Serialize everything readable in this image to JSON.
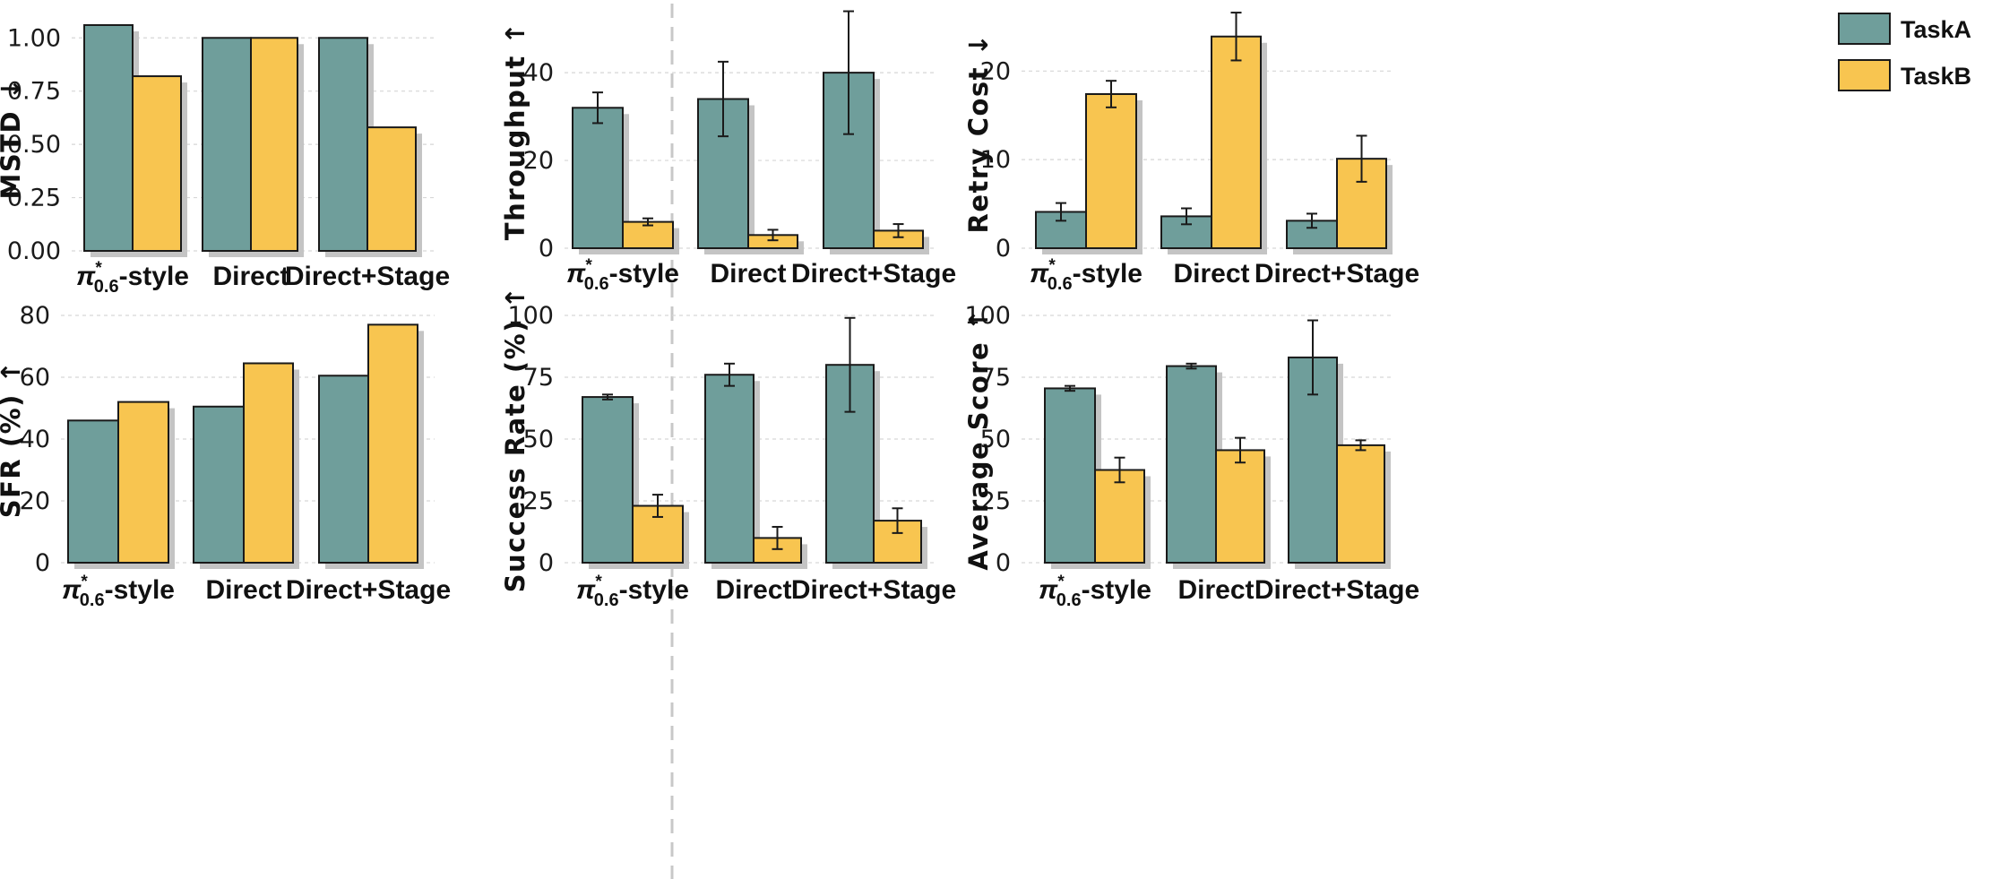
{
  "legend": [
    {
      "name": "TaskA",
      "color": "#6f9e9b"
    },
    {
      "name": "TaskB",
      "color": "#f8c550"
    }
  ],
  "colors": {
    "divider": "#c8c8c8",
    "grid": "#d6d6d6",
    "shadow": "#c4c4c4",
    "edge": "#1a1a1a"
  },
  "chart_data": [
    {
      "type": "bar",
      "ylabel": "MSTD ↓",
      "categories": [
        "π*0.6-style",
        "Direct",
        "Direct+Stage"
      ],
      "ylim": [
        0,
        1.06
      ],
      "yticks": [
        0,
        0.25,
        0.5,
        0.75,
        1.0
      ],
      "ytick_labels": [
        "0.00",
        "0.25",
        "0.50",
        "0.75",
        "1.00"
      ],
      "series": [
        {
          "name": "TaskA",
          "values": [
            1.06,
            1.0,
            1.0
          ]
        },
        {
          "name": "TaskB",
          "values": [
            0.82,
            1.0,
            0.58
          ]
        }
      ]
    },
    {
      "type": "bar",
      "ylabel": "Throughput ↑",
      "categories": [
        "π*0.6-style",
        "Direct",
        "Direct+Stage"
      ],
      "ylim": [
        0,
        53.5
      ],
      "yticks": [
        0,
        20,
        40
      ],
      "ytick_labels": [
        "0",
        "20",
        "40"
      ],
      "series": [
        {
          "name": "TaskA",
          "values": [
            32.0,
            34.0,
            40.0
          ],
          "errors": [
            3.5,
            8.5,
            14.0
          ]
        },
        {
          "name": "TaskB",
          "values": [
            6.0,
            3.0,
            4.0
          ],
          "errors": [
            0.8,
            1.2,
            1.5
          ]
        }
      ]
    },
    {
      "type": "bar",
      "ylabel": "Retry Cost ↓",
      "categories": [
        "π*0.6-style",
        "Direct",
        "Direct+Stage"
      ],
      "ylim": [
        0,
        26
      ],
      "yticks": [
        0,
        10,
        20
      ],
      "ytick_labels": [
        "0",
        "10",
        "20"
      ],
      "series": [
        {
          "name": "TaskA",
          "values": [
            4.1,
            3.6,
            3.1
          ],
          "errors": [
            1.0,
            0.9,
            0.8
          ]
        },
        {
          "name": "TaskB",
          "values": [
            17.4,
            23.9,
            10.1
          ],
          "errors": [
            1.5,
            2.7,
            2.6
          ]
        }
      ]
    },
    {
      "type": "bar",
      "ylabel": "SFR (%) ↑",
      "categories": [
        "π*0.6-style",
        "Direct",
        "Direct+Stage"
      ],
      "ylim": [
        0,
        80
      ],
      "yticks": [
        0,
        20,
        40,
        60,
        80
      ],
      "ytick_labels": [
        "0",
        "20",
        "40",
        "60",
        "80"
      ],
      "series": [
        {
          "name": "TaskA",
          "values": [
            46.0,
            50.5,
            60.5
          ]
        },
        {
          "name": "TaskB",
          "values": [
            52.0,
            64.5,
            77.0
          ]
        }
      ]
    },
    {
      "type": "bar",
      "ylabel": "Success Rate (%) ↑",
      "categories": [
        "π*0.6-style",
        "Direct",
        "Direct+Stage"
      ],
      "ylim": [
        0,
        100
      ],
      "yticks": [
        0,
        25,
        50,
        75,
        100
      ],
      "ytick_labels": [
        "0",
        "25",
        "50",
        "75",
        "100"
      ],
      "series": [
        {
          "name": "TaskA",
          "values": [
            67.0,
            76.0,
            80.0
          ],
          "errors": [
            1.0,
            4.5,
            19.0
          ]
        },
        {
          "name": "TaskB",
          "values": [
            23.0,
            10.0,
            17.0
          ],
          "errors": [
            4.5,
            4.5,
            5.0
          ]
        }
      ]
    },
    {
      "type": "bar",
      "ylabel": "Average Score ↑",
      "categories": [
        "π*0.6-style",
        "Direct",
        "Direct+Stage"
      ],
      "ylim": [
        0,
        100
      ],
      "yticks": [
        0,
        25,
        50,
        75,
        100
      ],
      "ytick_labels": [
        "0",
        "25",
        "50",
        "75",
        "100"
      ],
      "series": [
        {
          "name": "TaskA",
          "values": [
            70.5,
            79.5,
            83.0
          ],
          "errors": [
            1.0,
            1.0,
            15.0
          ]
        },
        {
          "name": "TaskB",
          "values": [
            37.5,
            45.5,
            47.5
          ],
          "errors": [
            5.0,
            5.0,
            2.0
          ]
        }
      ]
    }
  ]
}
